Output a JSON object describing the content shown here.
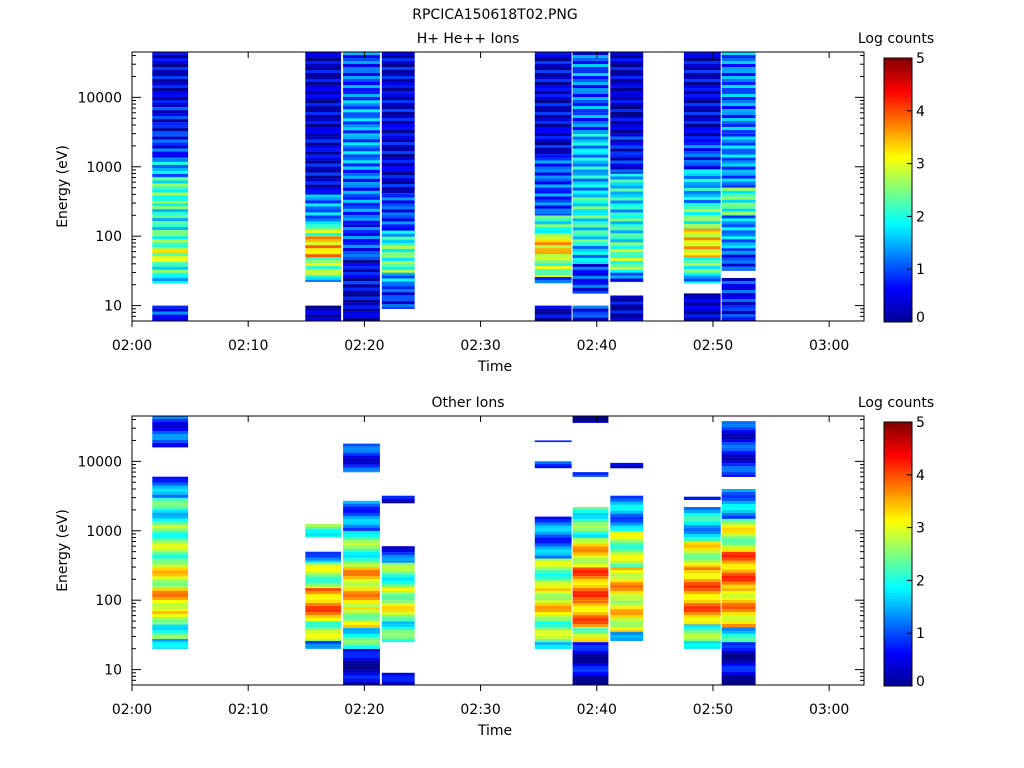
{
  "figure_title": "RPCICA150618T02.PNG",
  "colorscale": [
    "#00008f",
    "#0000ff",
    "#007fff",
    "#00ffff",
    "#7fff7f",
    "#ffff00",
    "#ff7f00",
    "#ff0000",
    "#7f0000"
  ],
  "chart_data": [
    {
      "type": "heatmap",
      "title": "H+ He++ Ions",
      "xlabel": "Time",
      "ylabel": "Energy (eV)",
      "yscale": "log",
      "ylim": [
        6,
        45000
      ],
      "xlim": [
        "02:00",
        "03:03"
      ],
      "xticks": [
        "02:00",
        "02:10",
        "02:20",
        "02:30",
        "02:40",
        "02:50",
        "03:00"
      ],
      "yticks": [
        "10",
        "100",
        "1000",
        "10000"
      ],
      "colorbar": {
        "label": "Log counts",
        "ticks": [
          "0",
          "1",
          "2",
          "3",
          "4",
          "5"
        ],
        "range": [
          0,
          5
        ]
      },
      "columns": [
        {
          "start": "02:01:45",
          "end": "02:04:50",
          "bins": [
            [
              6,
              10,
              0.8
            ],
            [
              21,
              25,
              1.4
            ],
            [
              25,
              40,
              2.1
            ],
            [
              40,
              70,
              2.8
            ],
            [
              70,
              110,
              2.3
            ],
            [
              110,
              300,
              2.0
            ],
            [
              300,
              700,
              2.2
            ],
            [
              700,
              1300,
              1.5
            ],
            [
              1300,
              3000,
              0.8
            ],
            [
              3000,
              8000,
              0.6
            ],
            [
              8000,
              45000,
              0.4
            ]
          ]
        },
        {
          "start": "02:14:55",
          "end": "02:18:00",
          "bins": [
            [
              6,
              10,
              0.2
            ],
            [
              22,
              26,
              1.3
            ],
            [
              26,
              50,
              2.6
            ],
            [
              50,
              100,
              3.4
            ],
            [
              100,
              150,
              2.5
            ],
            [
              150,
              400,
              1.3
            ],
            [
              400,
              3000,
              0.4
            ],
            [
              3000,
              45000,
              0.3
            ]
          ]
        },
        {
          "start": "02:18:10",
          "end": "02:21:20",
          "bins": [
            [
              6,
              20,
              0.3
            ],
            [
              20,
              50,
              0.5
            ],
            [
              50,
              150,
              0.9
            ],
            [
              150,
              1000,
              1.1
            ],
            [
              1000,
              10000,
              1.3
            ],
            [
              10000,
              45000,
              1.0
            ]
          ]
        },
        {
          "start": "02:21:30",
          "end": "02:24:20",
          "bins": [
            [
              9,
              19,
              0.8
            ],
            [
              19,
              30,
              1.4
            ],
            [
              30,
              80,
              2.3
            ],
            [
              80,
              120,
              1.8
            ],
            [
              120,
              400,
              0.9
            ],
            [
              400,
              45000,
              0.4
            ]
          ]
        },
        {
          "start": "02:34:40",
          "end": "02:37:50",
          "bins": [
            [
              6,
              10,
              0.2
            ],
            [
              21,
              26,
              1.2
            ],
            [
              26,
              50,
              2.5
            ],
            [
              50,
              100,
              3.3
            ],
            [
              100,
              200,
              2.1
            ],
            [
              200,
              1500,
              1.0
            ],
            [
              1500,
              45000,
              0.4
            ]
          ]
        },
        {
          "start": "02:37:55",
          "end": "02:41:00",
          "bins": [
            [
              6,
              10,
              0.8
            ],
            [
              15,
              40,
              0.8
            ],
            [
              40,
              80,
              1.6
            ],
            [
              80,
              400,
              2.0
            ],
            [
              400,
              3000,
              1.6
            ],
            [
              3000,
              45000,
              1.1
            ]
          ]
        },
        {
          "start": "02:41:10",
          "end": "02:44:00",
          "bins": [
            [
              6,
              14,
              0.3
            ],
            [
              22,
              30,
              1.0
            ],
            [
              30,
              80,
              2.4
            ],
            [
              80,
              200,
              2.0
            ],
            [
              200,
              800,
              1.8
            ],
            [
              800,
              3000,
              0.6
            ],
            [
              3000,
              45000,
              0.3
            ]
          ]
        },
        {
          "start": "02:47:30",
          "end": "02:50:40",
          "bins": [
            [
              6,
              15,
              0.3
            ],
            [
              21,
              30,
              1.4
            ],
            [
              30,
              50,
              2.3
            ],
            [
              50,
              130,
              3.2
            ],
            [
              130,
              300,
              2.3
            ],
            [
              300,
              900,
              1.6
            ],
            [
              900,
              2500,
              0.9
            ],
            [
              2500,
              45000,
              0.4
            ]
          ]
        },
        {
          "start": "02:50:45",
          "end": "02:53:40",
          "bins": [
            [
              6,
              25,
              0.7
            ],
            [
              32,
              60,
              0.9
            ],
            [
              60,
              200,
              1.4
            ],
            [
              200,
              500,
              2.2
            ],
            [
              500,
              3000,
              1.3
            ],
            [
              3000,
              45000,
              1.2
            ]
          ]
        }
      ]
    },
    {
      "type": "heatmap",
      "title": "Other Ions",
      "xlabel": "Time",
      "ylabel": "Energy (eV)",
      "yscale": "log",
      "ylim": [
        6,
        45000
      ],
      "xlim": [
        "02:00",
        "03:03"
      ],
      "xticks": [
        "02:00",
        "02:10",
        "02:20",
        "02:30",
        "02:40",
        "02:50",
        "03:00"
      ],
      "yticks": [
        "10",
        "100",
        "1000",
        "10000"
      ],
      "colorbar": {
        "label": "Log counts",
        "ticks": [
          "0",
          "1",
          "2",
          "3",
          "4",
          "5"
        ],
        "range": [
          0,
          5
        ]
      },
      "columns": [
        {
          "start": "02:01:45",
          "end": "02:04:50",
          "bins": [
            [
              20,
              28,
              1.4
            ],
            [
              28,
              45,
              2.2
            ],
            [
              45,
              70,
              3.0
            ],
            [
              70,
              150,
              3.3
            ],
            [
              150,
              400,
              3.0
            ],
            [
              400,
              1200,
              2.5
            ],
            [
              1200,
              3000,
              2.0
            ],
            [
              3000,
              6000,
              1.2
            ],
            [
              16000,
              45000,
              0.9
            ]
          ]
        },
        {
          "start": "02:14:55",
          "end": "02:18:00",
          "bins": [
            [
              20,
              26,
              0.9
            ],
            [
              26,
              50,
              2.6
            ],
            [
              50,
              150,
              3.6
            ],
            [
              150,
              350,
              2.6
            ],
            [
              350,
              500,
              1.4
            ],
            [
              800,
              1250,
              2.3
            ]
          ]
        },
        {
          "start": "02:18:10",
          "end": "02:21:20",
          "bins": [
            [
              6,
              20,
              0.3
            ],
            [
              20,
              40,
              2.0
            ],
            [
              40,
              80,
              2.9
            ],
            [
              80,
              300,
              3.3
            ],
            [
              300,
              1000,
              2.3
            ],
            [
              1000,
              2700,
              1.2
            ],
            [
              7000,
              18000,
              0.8
            ]
          ]
        },
        {
          "start": "02:21:30",
          "end": "02:24:20",
          "bins": [
            [
              6,
              9,
              0.3
            ],
            [
              25,
              50,
              2.1
            ],
            [
              50,
              150,
              2.8
            ],
            [
              150,
              350,
              2.3
            ],
            [
              350,
              600,
              0.9
            ],
            [
              2500,
              3200,
              0.5
            ]
          ]
        },
        {
          "start": "02:34:40",
          "end": "02:37:50",
          "bins": [
            [
              20,
              25,
              1.3
            ],
            [
              25,
              50,
              2.5
            ],
            [
              50,
              150,
              3.1
            ],
            [
              150,
              400,
              2.5
            ],
            [
              400,
              1600,
              1.2
            ],
            [
              8000,
              10000,
              0.9
            ],
            [
              19000,
              20000,
              0.5
            ]
          ]
        },
        {
          "start": "02:37:55",
          "end": "02:41:00",
          "bins": [
            [
              6,
              25,
              0.4
            ],
            [
              25,
              40,
              2.8
            ],
            [
              40,
              100,
              3.6
            ],
            [
              100,
              300,
              3.7
            ],
            [
              300,
              800,
              3.2
            ],
            [
              800,
              2200,
              2.2
            ],
            [
              6000,
              7000,
              0.5
            ],
            [
              36000,
              45000,
              0.2
            ]
          ]
        },
        {
          "start": "02:41:10",
          "end": "02:44:00",
          "bins": [
            [
              26,
              35,
              1.0
            ],
            [
              35,
              100,
              3.1
            ],
            [
              100,
              300,
              3.3
            ],
            [
              300,
              1000,
              2.6
            ],
            [
              1000,
              3200,
              1.4
            ],
            [
              8000,
              9500,
              0.5
            ]
          ]
        },
        {
          "start": "02:47:30",
          "end": "02:50:40",
          "bins": [
            [
              20,
              26,
              1.4
            ],
            [
              26,
              45,
              2.3
            ],
            [
              45,
              300,
              3.6
            ],
            [
              300,
              700,
              2.9
            ],
            [
              700,
              2200,
              1.7
            ],
            [
              2800,
              3100,
              0.6
            ]
          ]
        },
        {
          "start": "02:50:45",
          "end": "02:53:40",
          "bins": [
            [
              6,
              25,
              0.4
            ],
            [
              25,
              40,
              1.8
            ],
            [
              40,
              150,
              3.4
            ],
            [
              150,
              500,
              3.7
            ],
            [
              500,
              1500,
              2.8
            ],
            [
              1500,
              4000,
              1.4
            ],
            [
              6000,
              38000,
              0.7
            ]
          ]
        }
      ]
    }
  ]
}
